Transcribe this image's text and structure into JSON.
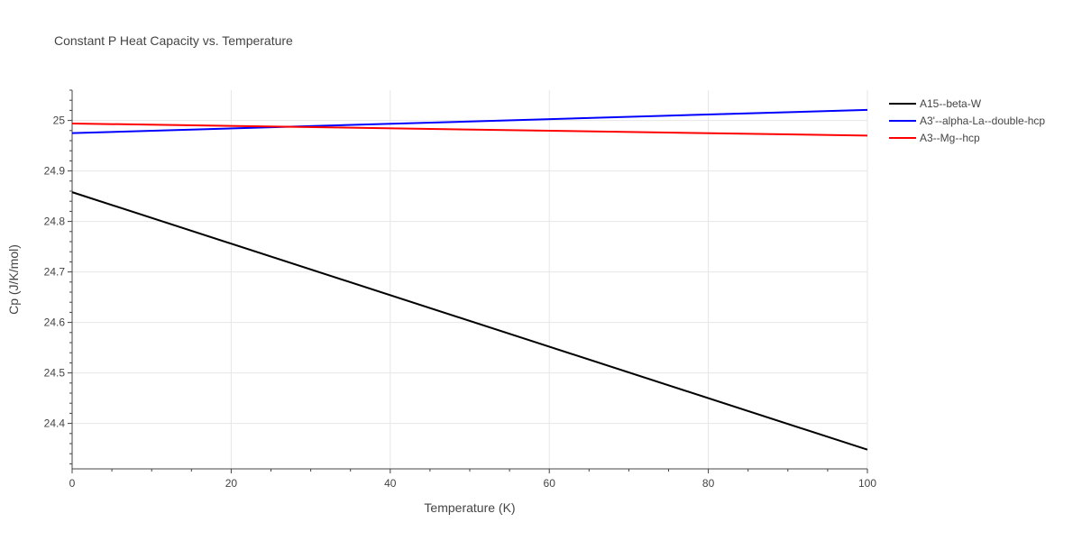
{
  "chart_data": {
    "type": "line",
    "title": "Constant P Heat Capacity vs. Temperature",
    "xlabel": "Temperature (K)",
    "ylabel": "Cp (J/K/mol)",
    "xlim": [
      0,
      100
    ],
    "ylim": [
      24.31,
      25.06
    ],
    "xticks": [
      0,
      20,
      40,
      60,
      80,
      100
    ],
    "xtick_labels": [
      "0",
      "20",
      "40",
      "60",
      "80",
      "100"
    ],
    "yticks": [
      24.4,
      24.5,
      24.6,
      24.7,
      24.8,
      24.9,
      25.0
    ],
    "ytick_labels": [
      "24.4",
      "24.5",
      "24.6",
      "24.7",
      "24.8",
      "24.9",
      "25"
    ],
    "grid": true,
    "legend_position": "top-right",
    "series": [
      {
        "name": "A15--beta-W",
        "color": "#000000",
        "x": [
          0,
          100
        ],
        "y": [
          24.858,
          24.348
        ]
      },
      {
        "name": "A3'--alpha-La--double-hcp",
        "color": "#0000ff",
        "x": [
          0,
          100
        ],
        "y": [
          24.975,
          25.021
        ]
      },
      {
        "name": "A3--Mg--hcp",
        "color": "#ff0000",
        "x": [
          0,
          100
        ],
        "y": [
          24.994,
          24.97
        ]
      }
    ]
  }
}
